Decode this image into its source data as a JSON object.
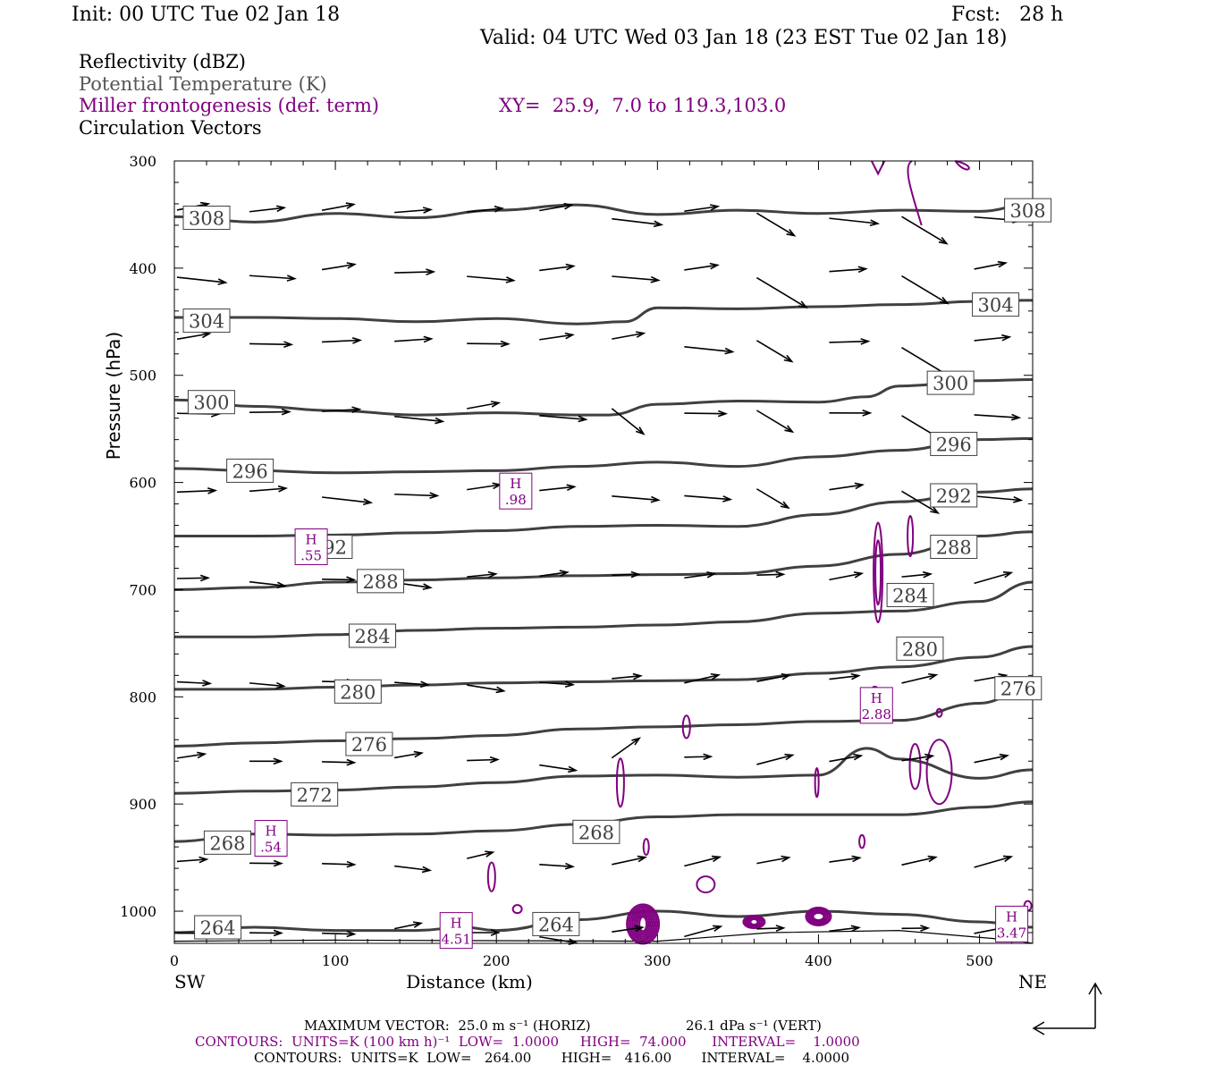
{
  "header": {
    "init": "Init: 00 UTC Tue 02 Jan 18",
    "fcst": "Fcst:   28 h",
    "valid": "Valid: 04 UTC Wed 03 Jan 18 (23 EST Tue 02 Jan 18)"
  },
  "legend": {
    "reflectivity": "Reflectivity (dBZ)",
    "theta": "Potential Temperature (K)",
    "frontogenesis": "Miller frontogenesis (def. term)",
    "xy": "XY=  25.9,  7.0 to 119.3,103.0",
    "vectors": "Circulation Vectors"
  },
  "colors": {
    "theta": "#404040",
    "fronto": "#800080",
    "vectors": "#000000"
  },
  "chart_data": {
    "type": "cross-section",
    "xlabel": "Distance (km)",
    "ylabel": "Pressure (hPa)",
    "xlim": [
      0,
      533
    ],
    "ylim": [
      300,
      1030
    ],
    "x_ticks": [
      0,
      100,
      200,
      300,
      400,
      500
    ],
    "y_ticks": [
      300,
      400,
      500,
      600,
      700,
      800,
      900,
      1000
    ],
    "left_end": "SW",
    "right_end": "NE",
    "theta_contours": [
      {
        "value": 308,
        "points": [
          [
            0,
            352
          ],
          [
            50,
            357
          ],
          [
            100,
            349
          ],
          [
            150,
            353
          ],
          [
            200,
            346
          ],
          [
            250,
            341
          ],
          [
            300,
            350
          ],
          [
            350,
            346
          ],
          [
            400,
            349
          ],
          [
            450,
            346
          ],
          [
            500,
            347
          ],
          [
            533,
            340
          ]
        ]
      },
      {
        "value": 304,
        "points": [
          [
            0,
            446
          ],
          [
            50,
            446
          ],
          [
            100,
            447
          ],
          [
            150,
            450
          ],
          [
            200,
            447
          ],
          [
            250,
            452
          ],
          [
            280,
            450
          ],
          [
            300,
            437
          ],
          [
            350,
            438
          ],
          [
            400,
            436
          ],
          [
            450,
            434
          ],
          [
            500,
            431
          ],
          [
            533,
            430
          ]
        ]
      },
      {
        "value": 300,
        "points": [
          [
            0,
            523
          ],
          [
            50,
            529
          ],
          [
            100,
            533
          ],
          [
            150,
            537
          ],
          [
            200,
            535
          ],
          [
            250,
            537
          ],
          [
            270,
            537
          ],
          [
            300,
            527
          ],
          [
            350,
            524
          ],
          [
            400,
            525
          ],
          [
            430,
            520
          ],
          [
            450,
            510
          ],
          [
            500,
            505
          ],
          [
            533,
            504
          ]
        ]
      },
      {
        "value": 296,
        "points": [
          [
            0,
            587
          ],
          [
            50,
            589
          ],
          [
            100,
            591
          ],
          [
            150,
            590
          ],
          [
            200,
            589
          ],
          [
            250,
            585
          ],
          [
            300,
            581
          ],
          [
            350,
            585
          ],
          [
            400,
            576
          ],
          [
            450,
            570
          ],
          [
            500,
            560
          ],
          [
            533,
            559
          ]
        ]
      },
      {
        "value": 292,
        "points": [
          [
            0,
            650
          ],
          [
            50,
            650
          ],
          [
            100,
            649
          ],
          [
            150,
            647
          ],
          [
            200,
            645
          ],
          [
            250,
            641
          ],
          [
            300,
            640
          ],
          [
            350,
            641
          ],
          [
            400,
            630
          ],
          [
            450,
            618
          ],
          [
            500,
            609
          ],
          [
            533,
            606
          ]
        ]
      },
      {
        "value": 288,
        "points": [
          [
            0,
            700
          ],
          [
            50,
            698
          ],
          [
            100,
            693
          ],
          [
            150,
            691
          ],
          [
            200,
            689
          ],
          [
            250,
            687
          ],
          [
            300,
            686
          ],
          [
            350,
            685
          ],
          [
            400,
            678
          ],
          [
            450,
            667
          ],
          [
            500,
            650
          ],
          [
            533,
            646
          ]
        ]
      },
      {
        "value": 284,
        "points": [
          [
            0,
            744
          ],
          [
            50,
            744
          ],
          [
            100,
            742
          ],
          [
            150,
            738
          ],
          [
            200,
            736
          ],
          [
            250,
            735
          ],
          [
            300,
            733
          ],
          [
            350,
            730
          ],
          [
            400,
            722
          ],
          [
            450,
            720
          ],
          [
            500,
            711
          ],
          [
            533,
            693
          ]
        ]
      },
      {
        "value": 280,
        "points": [
          [
            0,
            793
          ],
          [
            50,
            793
          ],
          [
            100,
            791
          ],
          [
            150,
            789
          ],
          [
            200,
            787
          ],
          [
            250,
            786
          ],
          [
            300,
            785
          ],
          [
            350,
            784
          ],
          [
            400,
            778
          ],
          [
            450,
            772
          ],
          [
            500,
            763
          ],
          [
            533,
            753
          ]
        ]
      },
      {
        "value": 276,
        "points": [
          [
            0,
            846
          ],
          [
            50,
            843
          ],
          [
            100,
            841
          ],
          [
            150,
            839
          ],
          [
            200,
            836
          ],
          [
            250,
            830
          ],
          [
            300,
            828
          ],
          [
            350,
            826
          ],
          [
            400,
            823
          ],
          [
            450,
            822
          ],
          [
            500,
            806
          ],
          [
            533,
            790
          ]
        ]
      },
      {
        "value": 272,
        "points": [
          [
            0,
            890
          ],
          [
            50,
            888
          ],
          [
            100,
            887
          ],
          [
            150,
            884
          ],
          [
            200,
            880
          ],
          [
            250,
            874
          ],
          [
            300,
            873
          ],
          [
            350,
            875
          ],
          [
            400,
            873
          ],
          [
            430,
            848
          ],
          [
            450,
            858
          ],
          [
            500,
            876
          ],
          [
            533,
            868
          ]
        ]
      },
      {
        "value": 268,
        "points": [
          [
            0,
            935
          ],
          [
            50,
            928
          ],
          [
            100,
            929
          ],
          [
            150,
            928
          ],
          [
            200,
            925
          ],
          [
            250,
            919
          ],
          [
            300,
            912
          ],
          [
            350,
            910
          ],
          [
            400,
            910
          ],
          [
            450,
            910
          ],
          [
            500,
            903
          ],
          [
            533,
            898
          ]
        ]
      },
      {
        "value": 264,
        "points": [
          [
            0,
            1020
          ],
          [
            50,
            1015
          ],
          [
            100,
            1018
          ],
          [
            150,
            1018
          ],
          [
            180,
            1015
          ],
          [
            200,
            1018
          ],
          [
            250,
            1008
          ],
          [
            300,
            1000
          ],
          [
            350,
            1005
          ],
          [
            400,
            1000
          ],
          [
            450,
            1003
          ],
          [
            500,
            1010
          ],
          [
            533,
            1015
          ]
        ]
      }
    ],
    "max_vector": {
      "label": "MAXIMUM VECTOR:",
      "horiz": "25.0 m s⁻¹ (HORIZ)",
      "vert": "26.1 dPa s⁻¹ (VERT)"
    },
    "fronto_maxima": [
      {
        "label": "H",
        "value": ".98",
        "x": 212,
        "p": 608
      },
      {
        "label": "H",
        "value": ".55",
        "x": 85,
        "p": 660
      },
      {
        "label": "H",
        "value": "2.88",
        "x": 436,
        "p": 808
      },
      {
        "label": "H",
        "value": ".54",
        "x": 60,
        "p": 932
      },
      {
        "label": "H",
        "value": "4.51",
        "x": 175,
        "p": 1018
      },
      {
        "label": "H",
        "value": "3.47",
        "x": 520,
        "p": 1012
      }
    ]
  },
  "footer": {
    "max_vector": "MAXIMUM VECTOR:  25.0 m s⁻¹ (HORIZ)",
    "max_vector_vert": "26.1 dPa s⁻¹ (VERT)",
    "contours1": "CONTOURS:  UNITS=K (100 km h)⁻¹  LOW=  1.0000     HIGH=  74.000      INTERVAL=    1.0000",
    "contours2": "CONTOURS:  UNITS=K  LOW=   264.00       HIGH=   416.00       INTERVAL=    4.0000"
  }
}
